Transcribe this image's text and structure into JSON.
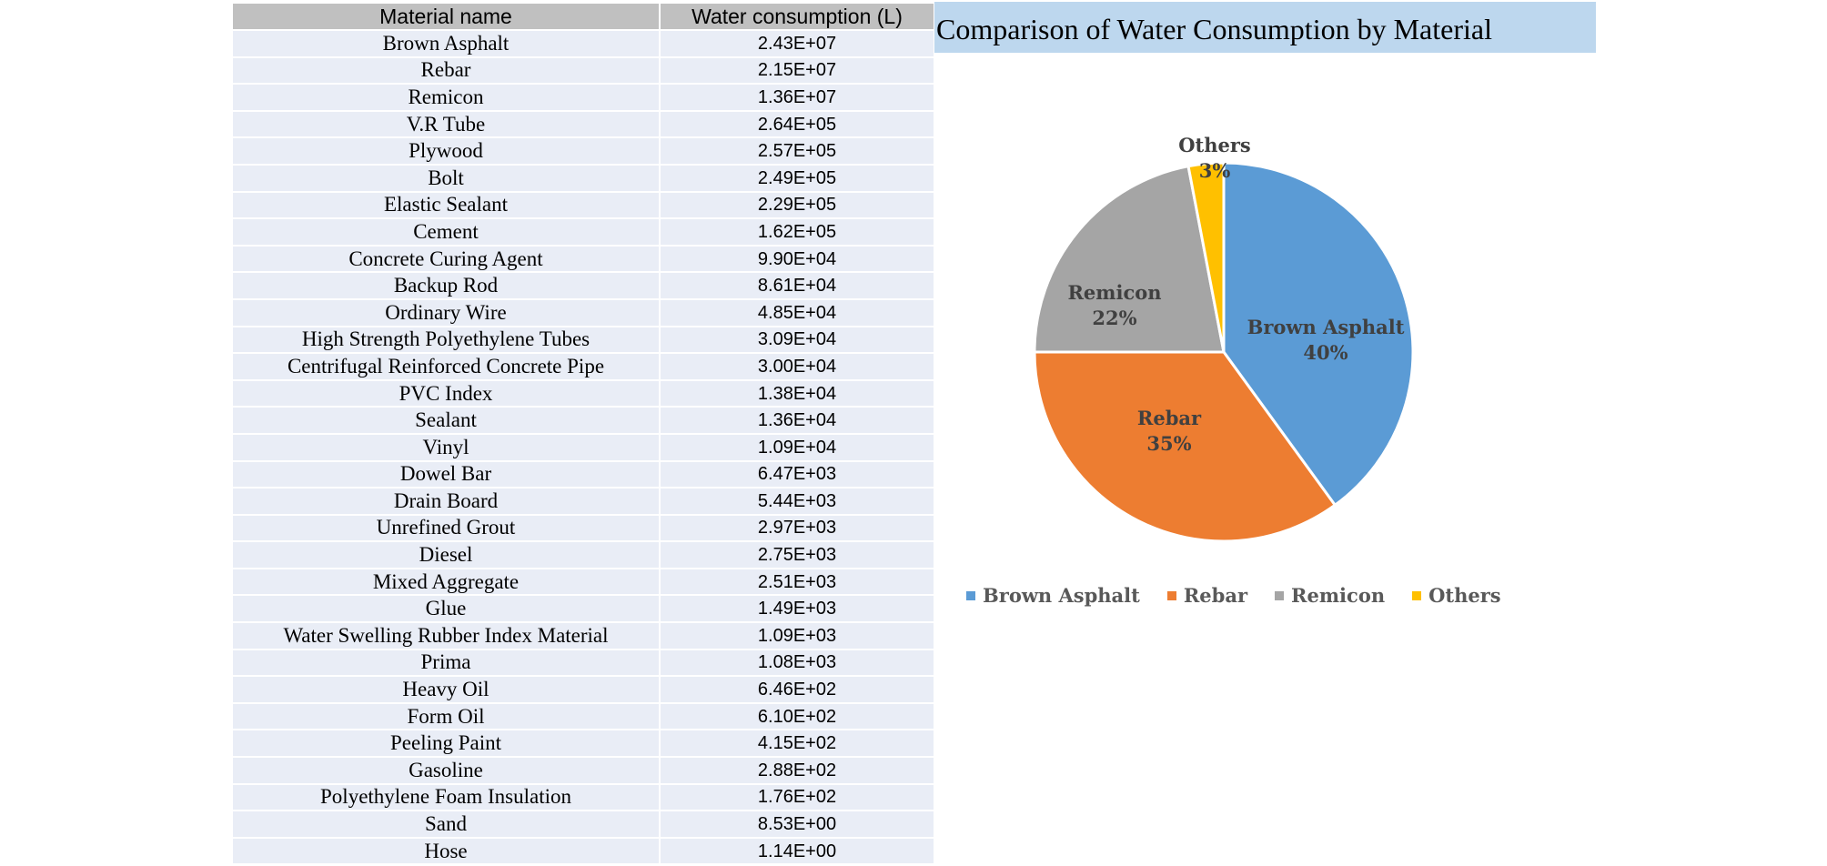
{
  "table": {
    "headers": [
      "Material name",
      "Water consumption (L)"
    ],
    "rows": [
      [
        "Brown Asphalt",
        "2.43E+07"
      ],
      [
        "Rebar",
        "2.15E+07"
      ],
      [
        "Remicon",
        "1.36E+07"
      ],
      [
        "V.R Tube",
        "2.64E+05"
      ],
      [
        "Plywood",
        "2.57E+05"
      ],
      [
        "Bolt",
        "2.49E+05"
      ],
      [
        "Elastic Sealant",
        "2.29E+05"
      ],
      [
        "Cement",
        "1.62E+05"
      ],
      [
        "Concrete Curing Agent",
        "9.90E+04"
      ],
      [
        "Backup Rod",
        "8.61E+04"
      ],
      [
        "Ordinary Wire",
        "4.85E+04"
      ],
      [
        "High Strength Polyethylene Tubes",
        "3.09E+04"
      ],
      [
        "Centrifugal Reinforced Concrete Pipe",
        "3.00E+04"
      ],
      [
        "PVC Index",
        "1.38E+04"
      ],
      [
        "Sealant",
        "1.36E+04"
      ],
      [
        "Vinyl",
        "1.09E+04"
      ],
      [
        "Dowel Bar",
        "6.47E+03"
      ],
      [
        "Drain Board",
        "5.44E+03"
      ],
      [
        "Unrefined Grout",
        "2.97E+03"
      ],
      [
        "Diesel",
        "2.75E+03"
      ],
      [
        "Mixed Aggregate",
        "2.51E+03"
      ],
      [
        "Glue",
        "1.49E+03"
      ],
      [
        "Water Swelling Rubber Index Material",
        "1.09E+03"
      ],
      [
        "Prima",
        "1.08E+03"
      ],
      [
        "Heavy Oil",
        "6.46E+02"
      ],
      [
        "Form Oil",
        "6.10E+02"
      ],
      [
        "Peeling Paint",
        "4.15E+02"
      ],
      [
        "Gasoline",
        "2.88E+02"
      ],
      [
        "Polyethylene Foam Insulation",
        "1.76E+02"
      ],
      [
        "Sand",
        "8.53E+00"
      ],
      [
        "Hose",
        "1.14E+00"
      ]
    ]
  },
  "chart_data": {
    "type": "pie",
    "title": "Comparison of Water Consumption by Material",
    "categories": [
      "Brown Asphalt",
      "Rebar",
      "Remicon",
      "Others"
    ],
    "values": [
      40,
      35,
      22,
      3
    ],
    "labels": [
      "40%",
      "35%",
      "22%",
      "3%"
    ],
    "colors": [
      "#5b9bd5",
      "#ed7d31",
      "#a5a5a5",
      "#ffc000"
    ],
    "legend": "bottom"
  }
}
